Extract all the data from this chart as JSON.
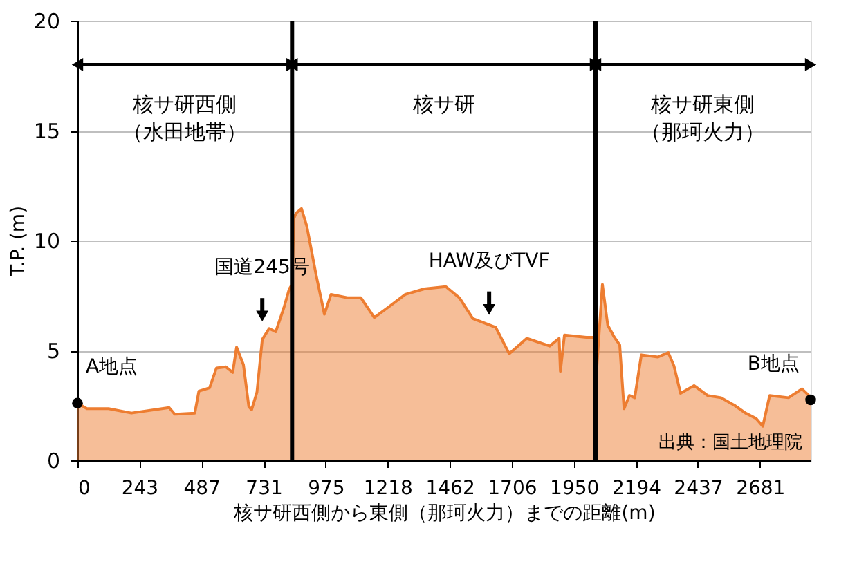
{
  "chart_data": {
    "type": "area",
    "xlabel": "核サ研西側から東側（那珂火力）までの距離(m)",
    "ylabel": "T.P. (m)",
    "x": [
      0,
      37,
      122,
      212,
      360,
      382,
      461,
      477,
      519,
      546,
      583,
      610,
      625,
      652,
      673,
      684,
      705,
      726,
      753,
      779,
      811,
      832,
      843,
      850,
      859,
      880,
      901,
      938,
      970,
      996,
      1060,
      1113,
      1166,
      1219,
      1288,
      1362,
      1447,
      1500,
      1553,
      1643,
      1696,
      1765,
      1855,
      1892,
      1897,
      1913,
      1999,
      2030,
      2040,
      2062,
      2083,
      2109,
      2130,
      2147,
      2168,
      2189,
      2215,
      2279,
      2321,
      2343,
      2369,
      2422,
      2475,
      2528,
      2581,
      2624,
      2666,
      2692,
      2719,
      2793,
      2846,
      2873,
      2880
    ],
    "series": [
      {
        "color": "#ed7d31",
        "values": [
          2.6,
          2.35,
          2.35,
          2.15,
          2.4,
          2.1,
          2.15,
          3.15,
          3.3,
          4.2,
          4.25,
          4.0,
          5.15,
          4.35,
          2.45,
          2.3,
          3.1,
          5.5,
          6.0,
          5.85,
          6.95,
          7.8,
          8.0,
          11.0,
          11.25,
          11.45,
          10.65,
          8.4,
          6.65,
          7.55,
          7.4,
          7.4,
          6.5,
          6.95,
          7.55,
          7.8,
          7.9,
          7.4,
          6.45,
          6.05,
          4.85,
          5.55,
          5.2,
          5.55,
          4.05,
          5.7,
          5.6,
          5.6,
          4.2,
          8.0,
          6.15,
          5.6,
          5.25,
          2.35,
          2.95,
          2.85,
          4.8,
          4.7,
          4.9,
          4.3,
          3.05,
          3.4,
          2.95,
          2.85,
          2.5,
          2.15,
          1.9,
          1.55,
          2.95,
          2.85,
          3.25,
          2.95,
          2.75
        ]
      }
    ],
    "xlim": [
      0,
      2880
    ],
    "xticks": [
      0,
      243,
      487,
      731,
      975,
      1218,
      1462,
      1706,
      1950,
      2194,
      2437,
      2681
    ],
    "ylim": [
      0,
      20
    ],
    "yticks": [
      0,
      5,
      10,
      15,
      20
    ],
    "grid": "y",
    "ref_lines": [
      {
        "axis": "x",
        "value": 843,
        "color": "#000000"
      },
      {
        "axis": "x",
        "value": 2035,
        "color": "#000000"
      }
    ],
    "annotations": [
      "核サ研西側（水田地帯）",
      "核サ研",
      "核サ研東側（那珂火力）",
      {
        "text": "A地点",
        "x": 0,
        "y": 2.6
      },
      {
        "text": "国道245号",
        "x": 726,
        "y": 6.0
      },
      {
        "text": "HAW及びTVF",
        "x": 1617,
        "y": 6.3
      },
      {
        "text": "B地点",
        "x": 2880,
        "y": 2.75
      },
      "出典：国土地理院"
    ]
  }
}
